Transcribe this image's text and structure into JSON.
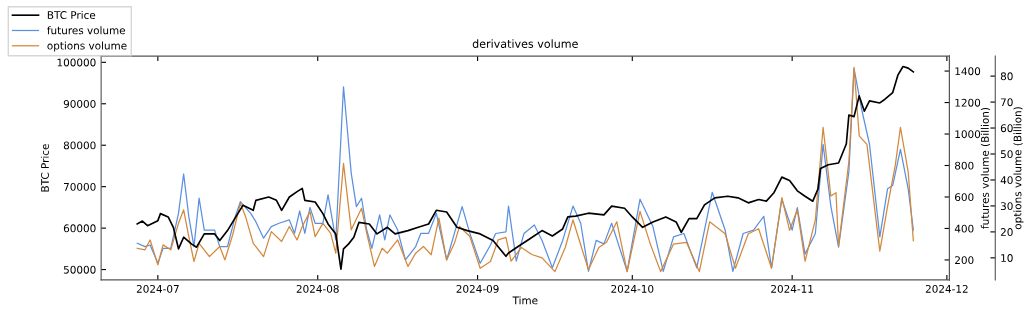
{
  "chart_data": {
    "type": "line",
    "title": "derivatives volume",
    "xlabel": "Time",
    "ylabel": "BTC Price",
    "y2label": "futures volume (Billion)",
    "y3label": "options volume (Billion)",
    "xlim": [
      "2024-06-20",
      "2024-12-01T12:00"
    ],
    "xticks": [
      {
        "value": "2024-07-01",
        "label": "2024-07"
      },
      {
        "value": "2024-08-01",
        "label": "2024-08"
      },
      {
        "value": "2024-09-01",
        "label": "2024-09"
      },
      {
        "value": "2024-10-01",
        "label": "2024-10"
      },
      {
        "value": "2024-11-01",
        "label": "2024-11"
      },
      {
        "value": "2024-12-01",
        "label": "2024-12"
      }
    ],
    "ylim": [
      47500,
      101500
    ],
    "yticks": [
      50000,
      60000,
      70000,
      80000,
      90000,
      100000
    ],
    "y2lim": [
      73,
      1495
    ],
    "y2ticks": [
      200,
      400,
      600,
      800,
      1000,
      1200,
      1400
    ],
    "y3lim": [
      1.5,
      87.7
    ],
    "y3ticks": [
      10,
      20,
      30,
      40,
      50,
      60,
      70,
      80
    ],
    "grid": false,
    "legend": "top left",
    "marker": "none",
    "line_style": "solid",
    "series": [
      {
        "name": "BTC Price",
        "color": "#000000",
        "x": [
          "2024-06-27",
          "2024-06-28",
          "2024-06-29",
          "2024-07-01",
          "2024-07-01T12:00",
          "2024-07-03",
          "2024-07-04",
          "2024-07-05",
          "2024-07-06",
          "2024-07-07T12:00",
          "2024-07-08T12:00",
          "2024-07-10",
          "2024-07-12",
          "2024-07-13",
          "2024-07-14T12:00",
          "2024-07-16T12:00",
          "2024-07-17T12:00",
          "2024-07-19T12:00",
          "2024-07-20",
          "2024-07-22T12:00",
          "2024-07-24",
          "2024-07-25",
          "2024-07-26T12:00",
          "2024-07-28",
          "2024-07-29",
          "2024-07-29T12:00",
          "2024-07-31T12:00",
          "2024-08-02",
          "2024-08-03",
          "2024-08-04T12:00",
          "2024-08-05T12:00",
          "2024-08-06",
          "2024-08-07",
          "2024-08-08",
          "2024-08-09",
          "2024-08-11",
          "2024-08-12T12:00",
          "2024-08-14T12:00",
          "2024-08-16",
          "2024-08-18T12:00",
          "2024-08-20T12:00",
          "2024-08-22T12:00",
          "2024-08-24",
          "2024-08-26",
          "2024-08-28",
          "2024-08-30",
          "2024-09-01T12:00",
          "2024-09-04",
          "2024-09-06T12:00",
          "2024-09-07",
          "2024-09-09",
          "2024-09-11",
          "2024-09-13T12:00",
          "2024-09-15T12:00",
          "2024-09-17T12:00",
          "2024-09-18T12:00",
          "2024-09-20",
          "2024-09-22T12:00",
          "2024-09-25T12:00",
          "2024-09-27",
          "2024-09-29T12:00",
          "2024-10-01",
          "2024-10-03",
          "2024-10-05",
          "2024-10-07T12:00",
          "2024-10-09T12:00",
          "2024-10-10T12:00",
          "2024-10-12",
          "2024-10-13T12:00",
          "2024-10-15",
          "2024-10-17",
          "2024-10-19T12:00",
          "2024-10-21T12:00",
          "2024-10-23T12:00",
          "2024-10-25T12:00",
          "2024-10-27",
          "2024-10-28T12:00",
          "2024-10-30",
          "2024-10-31T12:00",
          "2024-11-02",
          "2024-11-03T12:00",
          "2024-11-05",
          "2024-11-06",
          "2024-11-06T12:00",
          "2024-11-08",
          "2024-11-10",
          "2024-11-11T12:00",
          "2024-11-12",
          "2024-11-13",
          "2024-11-14",
          "2024-11-15",
          "2024-11-16",
          "2024-11-18",
          "2024-11-19",
          "2024-11-20T12:00",
          "2024-11-21T12:00",
          "2024-11-22T12:00",
          "2024-11-23T12:00",
          "2024-11-24T12:00"
        ],
        "values": [
          61000,
          61700,
          60600,
          61800,
          63500,
          62700,
          60200,
          55000,
          57800,
          56200,
          55400,
          58600,
          58600,
          57000,
          59400,
          63500,
          65500,
          64300,
          66700,
          67500,
          66700,
          64300,
          67500,
          68800,
          69600,
          66700,
          66300,
          63500,
          61000,
          58600,
          50100,
          55000,
          56200,
          57800,
          61400,
          61000,
          58600,
          60200,
          58600,
          59400,
          60200,
          61000,
          64300,
          63900,
          60200,
          59400,
          58600,
          57000,
          53200,
          54000,
          55700,
          57300,
          59400,
          58100,
          59800,
          62700,
          62900,
          63600,
          63200,
          65300,
          64800,
          62700,
          60200,
          61500,
          62700,
          61500,
          59000,
          62300,
          62300,
          65600,
          67300,
          67700,
          67300,
          66100,
          66900,
          66500,
          68600,
          72300,
          71500,
          69000,
          67700,
          66500,
          69400,
          74400,
          75300,
          75700,
          80300,
          87300,
          86900,
          91900,
          88200,
          90700,
          90200,
          91100,
          92700,
          96900,
          99000,
          98600,
          97700
        ]
      },
      {
        "name": "futures volume",
        "color": "#5b8fe0",
        "axis": "y2",
        "x": [
          "2024-06-27",
          "2024-06-28T12:00",
          "2024-06-29T12:00",
          "2024-07-01",
          "2024-07-02",
          "2024-07-03T12:00",
          "2024-07-05",
          "2024-07-06",
          "2024-07-07",
          "2024-07-08",
          "2024-07-09",
          "2024-07-10",
          "2024-07-12",
          "2024-07-13",
          "2024-07-14T12:00",
          "2024-07-16",
          "2024-07-17",
          "2024-07-19",
          "2024-07-20",
          "2024-07-21T12:00",
          "2024-07-23",
          "2024-07-24T12:00",
          "2024-07-26T12:00",
          "2024-07-27T12:00",
          "2024-07-28T12:00",
          "2024-07-29T12:00",
          "2024-07-30T12:00",
          "2024-07-31T12:00",
          "2024-08-02",
          "2024-08-03",
          "2024-08-04T12:00",
          "2024-08-06",
          "2024-08-07T12:00",
          "2024-08-08T12:00",
          "2024-08-09T12:00",
          "2024-08-10T12:00",
          "2024-08-11T12:00",
          "2024-08-13",
          "2024-08-14",
          "2024-08-15",
          "2024-08-16T12:00",
          "2024-08-18",
          "2024-08-20",
          "2024-08-21",
          "2024-08-22T12:00",
          "2024-08-24",
          "2024-08-26",
          "2024-08-27T12:00",
          "2024-08-29",
          "2024-08-30T12:00",
          "2024-09-01T12:00",
          "2024-09-03T12:00",
          "2024-09-04T12:00",
          "2024-09-06T12:00",
          "2024-09-07",
          "2024-09-08T12:00",
          "2024-09-10",
          "2024-09-12",
          "2024-09-13T12:00",
          "2024-09-15T12:00",
          "2024-09-17T12:00",
          "2024-09-19T12:00",
          "2024-09-21",
          "2024-09-22T12:00",
          "2024-09-24",
          "2024-09-25T12:00",
          "2024-09-27",
          "2024-09-30",
          "2024-10-02T12:00",
          "2024-10-05",
          "2024-10-07",
          "2024-10-09",
          "2024-10-11",
          "2024-10-13T12:00",
          "2024-10-16T12:00",
          "2024-10-19",
          "2024-10-20T12:00",
          "2024-10-22T12:00",
          "2024-10-24T12:00",
          "2024-10-26T12:00",
          "2024-10-28",
          "2024-10-30",
          "2024-11-01",
          "2024-11-02",
          "2024-11-03T12:00",
          "2024-11-05T12:00",
          "2024-11-07",
          "2024-11-08T12:00",
          "2024-11-10",
          "2024-11-12",
          "2024-11-13",
          "2024-11-14T12:00",
          "2024-11-16",
          "2024-11-18",
          "2024-11-19T12:00",
          "2024-11-20T12:00",
          "2024-11-22",
          "2024-11-23T12:00",
          "2024-11-24T12:00"
        ],
        "values": [
          306,
          285,
          295,
          179,
          274,
          274,
          496,
          746,
          475,
          285,
          592,
          390,
          390,
          285,
          285,
          475,
          570,
          496,
          443,
          338,
          412,
          433,
          454,
          369,
          511,
          369,
          534,
          433,
          433,
          613,
          327,
          1300,
          750,
          539,
          592,
          390,
          274,
          486,
          327,
          486,
          390,
          200,
          285,
          369,
          369,
          496,
          200,
          369,
          539,
          369,
          179,
          295,
          368,
          379,
          542,
          193,
          368,
          422,
          324,
          150,
          324,
          542,
          433,
          128,
          324,
          302,
          433,
          128,
          586,
          412,
          128,
          346,
          368,
          150,
          630,
          390,
          128,
          368,
          390,
          477,
          150,
          586,
          390,
          532,
          237,
          368,
          935,
          542,
          281,
          761,
          1415,
          1153,
          935,
          346,
          652,
          673,
          902,
          652,
          390
        ]
      },
      {
        "name": "options volume",
        "color": "#d4883a",
        "axis": "y3",
        "x": [
          "2024-06-27",
          "2024-06-28T12:00",
          "2024-06-29T12:00",
          "2024-07-01",
          "2024-07-02",
          "2024-07-03T12:00",
          "2024-07-05",
          "2024-07-06",
          "2024-07-07",
          "2024-07-08",
          "2024-07-09",
          "2024-07-11",
          "2024-07-13",
          "2024-07-14",
          "2024-07-15T12:00",
          "2024-07-17",
          "2024-07-18",
          "2024-07-19T12:00",
          "2024-07-21T12:00",
          "2024-07-23",
          "2024-07-25",
          "2024-07-26T12:00",
          "2024-07-28",
          "2024-07-29",
          "2024-07-30T12:00",
          "2024-07-31T12:00",
          "2024-08-02",
          "2024-08-03T12:00",
          "2024-08-04T12:00",
          "2024-08-06",
          "2024-08-07T12:00",
          "2024-08-09T12:00",
          "2024-08-10T12:00",
          "2024-08-12",
          "2024-08-13T12:00",
          "2024-08-14T12:00",
          "2024-08-16T12:00",
          "2024-08-18T12:00",
          "2024-08-20",
          "2024-08-21T12:00",
          "2024-08-23",
          "2024-08-24T12:00",
          "2024-08-26",
          "2024-08-27T12:00",
          "2024-08-28T12:00",
          "2024-08-30T12:00",
          "2024-09-01T12:00",
          "2024-09-03T12:00",
          "2024-09-05",
          "2024-09-06T12:00",
          "2024-09-07T12:00",
          "2024-09-09T12:00",
          "2024-09-11T12:00",
          "2024-09-13T12:00",
          "2024-09-16",
          "2024-09-18",
          "2024-09-19T12:00",
          "2024-09-22T12:00",
          "2024-09-24T12:00",
          "2024-09-26",
          "2024-09-28",
          "2024-09-30",
          "2024-10-02T12:00",
          "2024-10-04T12:00",
          "2024-10-06T12:00",
          "2024-10-09",
          "2024-10-11T12:00",
          "2024-10-14",
          "2024-10-16",
          "2024-10-19",
          "2024-10-21",
          "2024-10-23T12:00",
          "2024-10-25T12:00",
          "2024-10-28",
          "2024-10-30",
          "2024-10-31T12:00",
          "2024-11-02",
          "2024-11-03T12:00",
          "2024-11-05T12:00",
          "2024-11-07",
          "2024-11-08T12:00",
          "2024-11-09T12:00",
          "2024-11-10",
          "2024-11-12",
          "2024-11-13",
          "2024-11-14",
          "2024-11-15T12:00",
          "2024-11-18",
          "2024-11-19T12:00",
          "2024-11-21",
          "2024-11-22",
          "2024-11-23T12:00",
          "2024-11-24T12:00"
        ],
        "values": [
          13.7,
          13.1,
          16.9,
          7.3,
          15.0,
          13.1,
          23.3,
          28.5,
          18.2,
          8.6,
          15.6,
          10.5,
          14.4,
          9.2,
          18.8,
          31.0,
          25.9,
          15.6,
          10.5,
          20.1,
          16.3,
          22.1,
          16.9,
          22.1,
          27.8,
          18.2,
          23.3,
          19.5,
          11.8,
          46.4,
          20.8,
          29.1,
          19.5,
          6.7,
          13.7,
          11.8,
          16.9,
          6.7,
          11.8,
          14.4,
          11.2,
          25.3,
          9.2,
          15.6,
          22.1,
          18.2,
          6.0,
          8.6,
          16.9,
          17.9,
          8.7,
          14.0,
          11.3,
          10.0,
          4.7,
          14.0,
          24.6,
          5.4,
          14.0,
          16.0,
          23.9,
          4.7,
          27.9,
          15.3,
          4.7,
          15.3,
          16.0,
          4.7,
          23.9,
          19.3,
          6.0,
          19.3,
          21.2,
          6.0,
          33.2,
          20.6,
          28.5,
          8.7,
          24.6,
          60.3,
          33.8,
          35.1,
          14.6,
          47.1,
          83.4,
          57.0,
          53.7,
          12.6,
          29.8,
          45.7,
          60.3,
          43.1,
          16.6
        ]
      }
    ]
  }
}
